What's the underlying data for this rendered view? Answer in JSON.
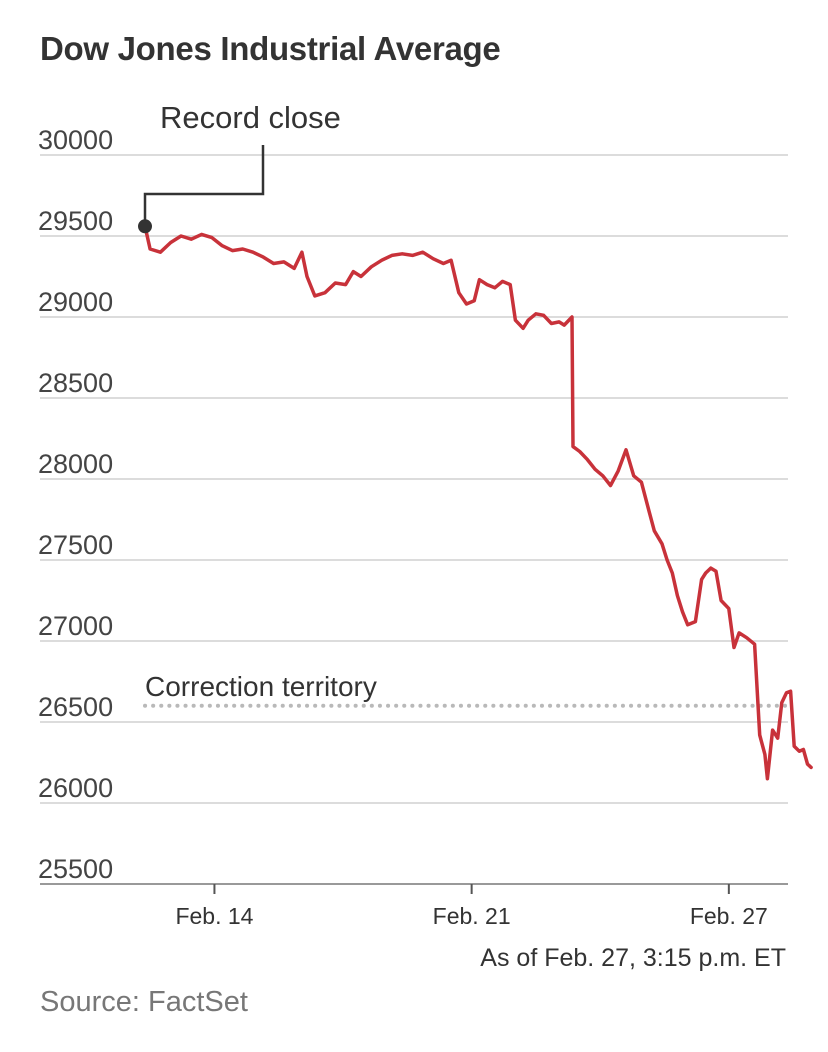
{
  "chart_data": {
    "type": "line",
    "title": "Dow Jones Industrial Average",
    "xlabel": "",
    "ylabel": "",
    "ylim": [
      25500,
      30000
    ],
    "yticks": [
      30000,
      29500,
      29000,
      28500,
      28000,
      27500,
      27000,
      26500,
      26000,
      25500
    ],
    "xticks": [
      {
        "label": "Feb. 14",
        "t": 1.35
      },
      {
        "label": "Feb. 21",
        "t": 6.35
      },
      {
        "label": "Feb. 27",
        "t": 11.35
      }
    ],
    "xlim": [
      0,
      12.5
    ],
    "grid": true,
    "line_color": "#c8323a",
    "series": [
      {
        "name": "",
        "points": [
          [
            0,
            29560
          ],
          [
            0.1,
            29420
          ],
          [
            0.3,
            29400
          ],
          [
            0.5,
            29460
          ],
          [
            0.7,
            29500
          ],
          [
            0.9,
            29480
          ],
          [
            1.1,
            29510
          ],
          [
            1.3,
            29490
          ],
          [
            1.5,
            29440
          ],
          [
            1.7,
            29410
          ],
          [
            1.9,
            29420
          ],
          [
            2.1,
            29400
          ],
          [
            2.3,
            29370
          ],
          [
            2.5,
            29330
          ],
          [
            2.7,
            29340
          ],
          [
            2.9,
            29300
          ],
          [
            3.05,
            29400
          ],
          [
            3.15,
            29250
          ],
          [
            3.3,
            29130
          ],
          [
            3.5,
            29150
          ],
          [
            3.7,
            29210
          ],
          [
            3.9,
            29200
          ],
          [
            4.05,
            29280
          ],
          [
            4.2,
            29250
          ],
          [
            4.4,
            29310
          ],
          [
            4.6,
            29350
          ],
          [
            4.8,
            29380
          ],
          [
            5.0,
            29390
          ],
          [
            5.2,
            29380
          ],
          [
            5.4,
            29400
          ],
          [
            5.6,
            29360
          ],
          [
            5.8,
            29330
          ],
          [
            5.95,
            29350
          ],
          [
            6.1,
            29150
          ],
          [
            6.25,
            29080
          ],
          [
            6.4,
            29100
          ],
          [
            6.5,
            29230
          ],
          [
            6.65,
            29200
          ],
          [
            6.8,
            29180
          ],
          [
            6.95,
            29220
          ],
          [
            7.1,
            29200
          ],
          [
            7.2,
            28980
          ],
          [
            7.35,
            28930
          ],
          [
            7.45,
            28980
          ],
          [
            7.6,
            29020
          ],
          [
            7.75,
            29010
          ],
          [
            7.9,
            28960
          ],
          [
            8.05,
            28970
          ],
          [
            8.15,
            28950
          ],
          [
            8.3,
            29000
          ],
          [
            8.32,
            28200
          ],
          [
            8.45,
            28170
          ],
          [
            8.6,
            28120
          ],
          [
            8.75,
            28060
          ],
          [
            8.9,
            28020
          ],
          [
            9.05,
            27960
          ],
          [
            9.2,
            28050
          ],
          [
            9.35,
            28180
          ],
          [
            9.5,
            28020
          ],
          [
            9.65,
            27980
          ],
          [
            9.8,
            27800
          ],
          [
            9.9,
            27680
          ],
          [
            10.05,
            27600
          ],
          [
            10.15,
            27500
          ],
          [
            10.25,
            27420
          ],
          [
            10.35,
            27280
          ],
          [
            10.45,
            27180
          ],
          [
            10.55,
            27100
          ],
          [
            10.7,
            27120
          ],
          [
            10.82,
            27380
          ],
          [
            10.9,
            27420
          ],
          [
            11.0,
            27450
          ],
          [
            11.1,
            27430
          ],
          [
            11.2,
            27250
          ],
          [
            11.35,
            27200
          ],
          [
            11.45,
            26960
          ],
          [
            11.55,
            27050
          ],
          [
            11.7,
            27020
          ],
          [
            11.85,
            26980
          ],
          [
            11.95,
            26420
          ],
          [
            12.05,
            26300
          ],
          [
            12.1,
            26150
          ],
          [
            12.2,
            26450
          ],
          [
            12.3,
            26400
          ],
          [
            12.38,
            26620
          ],
          [
            12.47,
            26680
          ],
          [
            12.55,
            26690
          ],
          [
            12.62,
            26350
          ],
          [
            12.72,
            26320
          ],
          [
            12.8,
            26330
          ],
          [
            12.88,
            26240
          ],
          [
            12.95,
            26220
          ]
        ]
      }
    ],
    "annotations": [
      {
        "text": "Record close",
        "t": 0,
        "y": 29560
      },
      {
        "text": "Correction territory",
        "y": 26600
      }
    ]
  },
  "footnote": "As of Feb. 27, 3:15 p.m. ET",
  "source": "Source: FactSet"
}
